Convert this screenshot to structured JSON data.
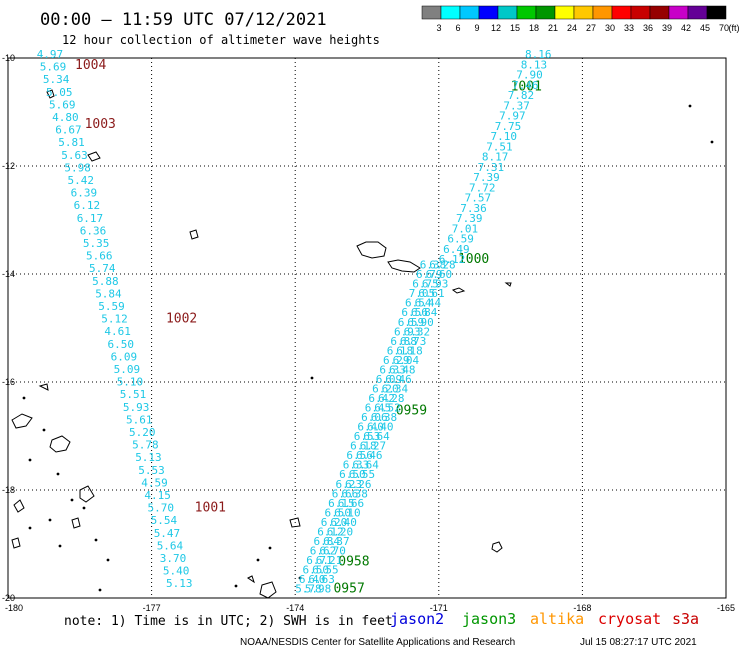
{
  "title": "00:00 – 11:59 UTC 07/12/2021",
  "subtitle": "12 hour collection of altimeter wave heights",
  "colorscale": {
    "labels": [
      "3",
      "6",
      "9",
      "12",
      "15",
      "18",
      "21",
      "24",
      "27",
      "30",
      "33",
      "36",
      "39",
      "42",
      "45",
      "70"
    ],
    "unit": "(ft)",
    "colors": [
      "#808080",
      "#00ffff",
      "#00c8ff",
      "#0000ff",
      "#00c8c8",
      "#00c800",
      "#009600",
      "#ffff00",
      "#ffc800",
      "#ff9600",
      "#ff0000",
      "#c80000",
      "#960000",
      "#c800c8",
      "#640096",
      "#000000"
    ]
  },
  "map": {
    "lon_ticks": [
      "-180",
      "-177",
      "-174",
      "-171",
      "-168",
      "-165"
    ],
    "lat_ticks": [
      "-10",
      "-12",
      "-14",
      "-16",
      "-18",
      "-20"
    ],
    "lon_range": [
      -180,
      -165
    ],
    "lat_range": [
      -20,
      -10
    ]
  },
  "pressure_labels": [
    {
      "text": "1004",
      "lon": -178.6,
      "lat": -10.2,
      "color": "#8b1a1a"
    },
    {
      "text": "1003",
      "lon": -178.4,
      "lat": -11.3,
      "color": "#8b1a1a"
    },
    {
      "text": "1002",
      "lon": -176.7,
      "lat": -14.9,
      "color": "#8b1a1a"
    },
    {
      "text": "1001",
      "lon": -176.1,
      "lat": -18.4,
      "color": "#8b1a1a"
    },
    {
      "text": "1001",
      "lon": -169.5,
      "lat": -10.6,
      "color": "#007800"
    },
    {
      "text": "1000",
      "lon": -170.6,
      "lat": -13.8,
      "color": "#007800"
    },
    {
      "text": "0959",
      "lon": -171.9,
      "lat": -16.6,
      "color": "#007800"
    },
    {
      "text": "0958",
      "lon": -173.1,
      "lat": -19.4,
      "color": "#007800"
    },
    {
      "text": "0957",
      "lon": -173.2,
      "lat": -19.9,
      "color": "#007800"
    }
  ],
  "tracks": [
    {
      "name": "west-track",
      "start": {
        "lon": -179.4,
        "lat": -10.0
      },
      "end": {
        "lon": -176.7,
        "lat": -19.8
      },
      "values": [
        "4.97",
        "5.69",
        "5.34",
        "5.05",
        "5.69",
        "4.80",
        "6.67",
        "5.81",
        "5.63",
        "5.98",
        "5.42",
        "6.39",
        "6.12",
        "6.17",
        "6.36",
        "5.35",
        "5.66",
        "5.74",
        "5.88",
        "5.84",
        "5.59",
        "5.12",
        "4.61",
        "6.50",
        "6.09",
        "5.09",
        "5.10",
        "5.51",
        "5.93",
        "5.61",
        "5.20",
        "5.78",
        "5.13",
        "5.53",
        "4.59",
        "4.15",
        "5.70",
        "5.54",
        "5.47",
        "5.64",
        "3.70",
        "5.40",
        "5.13"
      ]
    },
    {
      "name": "east-track",
      "start": {
        "lon": -169.2,
        "lat": -10.0
      },
      "end": {
        "lon": -171.0,
        "lat": -13.8
      },
      "values": [
        "8.16",
        "8.13",
        "7.90",
        "7.46",
        "7.82",
        "7.37",
        "7.97",
        "7.75",
        "7.10",
        "7.51",
        "8.17",
        "7.31",
        "7.39",
        "7.72",
        "7.57",
        "7.36",
        "7.39",
        "7.01",
        "6.59",
        "6.49",
        "6.12"
      ]
    },
    {
      "name": "diagonal-track-a",
      "start": {
        "lon": -171.4,
        "lat": -13.9
      },
      "end": {
        "lon": -174.0,
        "lat": -19.9
      },
      "values": [
        "6.38",
        "6.79",
        "6.75",
        "7.05",
        "6.54",
        "6.56",
        "6.59",
        "6.93",
        "6.88",
        "6.18",
        "6.29",
        "6.33",
        "6.09",
        "6.20",
        "6.42",
        "6.45",
        "6.06",
        "6.40",
        "6.53",
        "6.18",
        "6.56",
        "6.33",
        "6.50",
        "6.23",
        "6.66",
        "6.15",
        "6.50",
        "6.20",
        "6.12",
        "6.84",
        "6.62",
        "6.71",
        "6.50",
        "6.40",
        "5.78"
      ]
    },
    {
      "name": "diagonal-track-b",
      "start": {
        "lon": -171.2,
        "lat": -13.9
      },
      "end": {
        "lon": -173.8,
        "lat": -19.9
      },
      "values": [
        "6.28",
        "6.60",
        "6.93",
        "6.61",
        "6.44",
        "6.84",
        "6.90",
        "6.32",
        "6.73",
        "6.18",
        "6.04",
        "6.48",
        "6.46",
        "6.34",
        "6.28",
        "6.52",
        "6.38",
        "6.40",
        "6.64",
        "6.27",
        "6.46",
        "6.64",
        "6.55",
        "6.26",
        "6.38",
        "6.66",
        "6.10",
        "6.40",
        "6.20",
        "6.37",
        "6.70",
        "6.21",
        "6.55",
        "6.63",
        "5.98"
      ]
    }
  ],
  "note": "note: 1) Time is in UTC; 2) SWH is in feet",
  "satellites": [
    {
      "label": "jason2",
      "color": "#0000dc"
    },
    {
      "label": "jason3",
      "color": "#009600"
    },
    {
      "label": "altika",
      "color": "#ff9600"
    },
    {
      "label": "cryosat",
      "color": "#dc0000"
    },
    {
      "label": "s3a",
      "color": "#c80000"
    }
  ],
  "credit": "NOAA/NESDIS Center for Satellite Applications and Research",
  "timestamp": "Jul 15 08:27:17 UTC 2021"
}
